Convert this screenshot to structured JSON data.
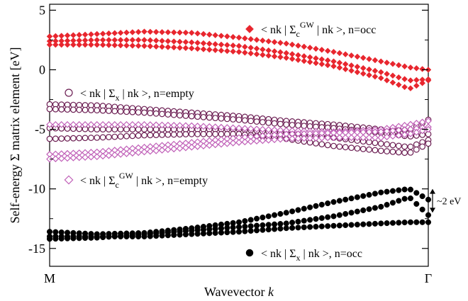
{
  "chart_data": {
    "type": "scatter",
    "title": "",
    "xlabel": "Wavevector",
    "xlabel_italic": "k",
    "ylabel": "Self-energy Σ matrix element [eV]",
    "x_ticks": [
      "M",
      "Γ"
    ],
    "xlim": [
      0,
      1
    ],
    "ylim": [
      -16.5,
      5.5
    ],
    "y_ticks": [
      5,
      0,
      -5,
      -10,
      -15
    ],
    "grid": false,
    "legend": "inline labels",
    "annotation": {
      "text": "~2 eV",
      "from_y": -10.0,
      "to_y": -12.0
    },
    "series": [
      {
        "name": "< nk | Σc GW | nk >,  n=occ",
        "label_prefix": "< nk | Σ",
        "label_sub": "c",
        "label_sup": "GW",
        "label_suffix": " | nk >,  n=occ",
        "marker": "diamond-filled",
        "color": "#e8262e",
        "x": [
          0,
          0.125,
          0.25,
          0.375,
          0.5,
          0.625,
          0.75,
          0.875,
          0.95,
          1
        ],
        "bands": [
          [
            2.8,
            3.0,
            3.2,
            3.1,
            2.7,
            2.2,
            1.5,
            0.7,
            0.2,
            0.0
          ],
          [
            2.4,
            2.5,
            2.5,
            2.3,
            2.0,
            1.4,
            0.7,
            -0.2,
            -0.9,
            -0.8
          ],
          [
            2.1,
            2.1,
            2.0,
            1.8,
            1.5,
            1.0,
            0.3,
            -0.7,
            -1.6,
            -0.9
          ]
        ]
      },
      {
        "name": "< nk | Σx | nk >,  n=empty",
        "label_prefix": "< nk | Σ",
        "label_sub": "x",
        "label_sup": "",
        "label_suffix": " | nk >,  n=empty",
        "marker": "circle-open",
        "color": "#6b1d52",
        "x": [
          0,
          0.125,
          0.25,
          0.375,
          0.5,
          0.625,
          0.75,
          0.875,
          0.95,
          1
        ],
        "bands": [
          [
            -2.9,
            -3.0,
            -3.3,
            -3.6,
            -3.9,
            -4.3,
            -4.6,
            -5.0,
            -5.1,
            -4.2
          ],
          [
            -3.3,
            -3.4,
            -3.6,
            -3.9,
            -4.2,
            -4.6,
            -4.9,
            -5.3,
            -5.6,
            -5.4
          ],
          [
            -4.9,
            -5.0,
            -5.0,
            -5.0,
            -5.0,
            -5.3,
            -5.7,
            -6.2,
            -6.5,
            -5.9
          ],
          [
            -5.8,
            -5.7,
            -5.5,
            -5.4,
            -5.4,
            -5.8,
            -6.4,
            -6.8,
            -7.0,
            -6.2
          ]
        ]
      },
      {
        "name": "< nk | Σc GW | nk >,  n=empty",
        "label_prefix": "< nk | Σ",
        "label_sub": "c",
        "label_sup": "GW",
        "label_suffix": " | nk >,  n=empty",
        "marker": "diamond-open",
        "color": "#c060b8",
        "x": [
          0,
          0.125,
          0.25,
          0.375,
          0.5,
          0.625,
          0.75,
          0.875,
          0.95,
          1
        ],
        "bands": [
          [
            -4.6,
            -4.6,
            -4.6,
            -4.7,
            -4.9,
            -5.1,
            -5.2,
            -5.0,
            -4.6,
            -4.3
          ],
          [
            -7.1,
            -6.9,
            -6.5,
            -6.1,
            -5.7,
            -5.4,
            -5.3,
            -5.2,
            -5.0,
            -4.8
          ],
          [
            -7.5,
            -7.3,
            -6.9,
            -6.5,
            -6.1,
            -5.8,
            -5.7,
            -5.7,
            -5.4,
            -5.0
          ]
        ]
      },
      {
        "name": "< nk | Σx | nk >,  n=occ",
        "label_prefix": "< nk | Σ",
        "label_sub": "x",
        "label_sup": "",
        "label_suffix": " | nk >,  n=occ",
        "marker": "circle-filled",
        "color": "#000000",
        "x": [
          0,
          0.125,
          0.25,
          0.375,
          0.5,
          0.625,
          0.75,
          0.875,
          0.95,
          1
        ],
        "bands": [
          [
            -13.6,
            -13.8,
            -13.7,
            -13.3,
            -12.8,
            -12.0,
            -11.1,
            -10.3,
            -10.0,
            -10.9
          ],
          [
            -14.0,
            -14.0,
            -14.0,
            -13.8,
            -13.6,
            -13.3,
            -13.1,
            -12.9,
            -12.8,
            -12.8
          ],
          [
            -14.2,
            -14.1,
            -13.8,
            -13.5,
            -13.2,
            -12.9,
            -12.3,
            -11.5,
            -10.7,
            -12.2
          ]
        ]
      }
    ]
  }
}
